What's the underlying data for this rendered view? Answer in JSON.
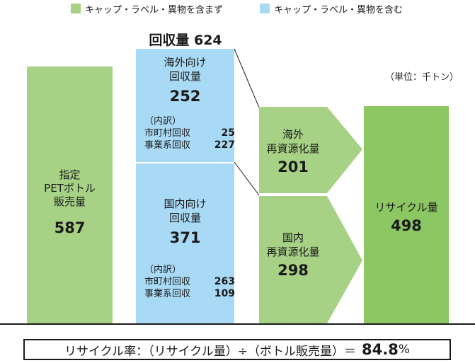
{
  "legend": {
    "excluding": "キャップ・ラベル・異物を含まず",
    "including": "キャップ・ラベル・異物を含む"
  },
  "unit": "（単位：千トン）",
  "collection_total": {
    "label": "回収量",
    "value": "624"
  },
  "sales": {
    "line1": "指定",
    "line2": "PETボトル",
    "line3": "販売量",
    "value": "587"
  },
  "overseas_collection": {
    "line1": "海外向け",
    "line2": "回収量",
    "value": "252",
    "breakdown_title": "（内訳）",
    "municipal_label": "市町村回収",
    "municipal_value": "25",
    "business_label": "事業系回収",
    "business_value": "227"
  },
  "domestic_collection": {
    "line1": "国内向け",
    "line2": "回収量",
    "value": "371",
    "breakdown_title": "（内訳）",
    "municipal_label": "市町村回収",
    "municipal_value": "263",
    "business_label": "事業系回収",
    "business_value": "109"
  },
  "overseas_recycling": {
    "line1": "海外",
    "line2": "再資源化量",
    "value": "201"
  },
  "domestic_recycling": {
    "line1": "国内",
    "line2": "再資源化量",
    "value": "298"
  },
  "recycled": {
    "label": "リサイクル量",
    "value": "498"
  },
  "formula": {
    "text": "リサイクル率：（リサイクル量）÷（ボトル販売量）＝",
    "rate": "84.8",
    "unit": "%"
  },
  "colors": {
    "light_green": "#a7d286",
    "light_blue": "#a9daf5",
    "dark_green": "#8cc763"
  }
}
